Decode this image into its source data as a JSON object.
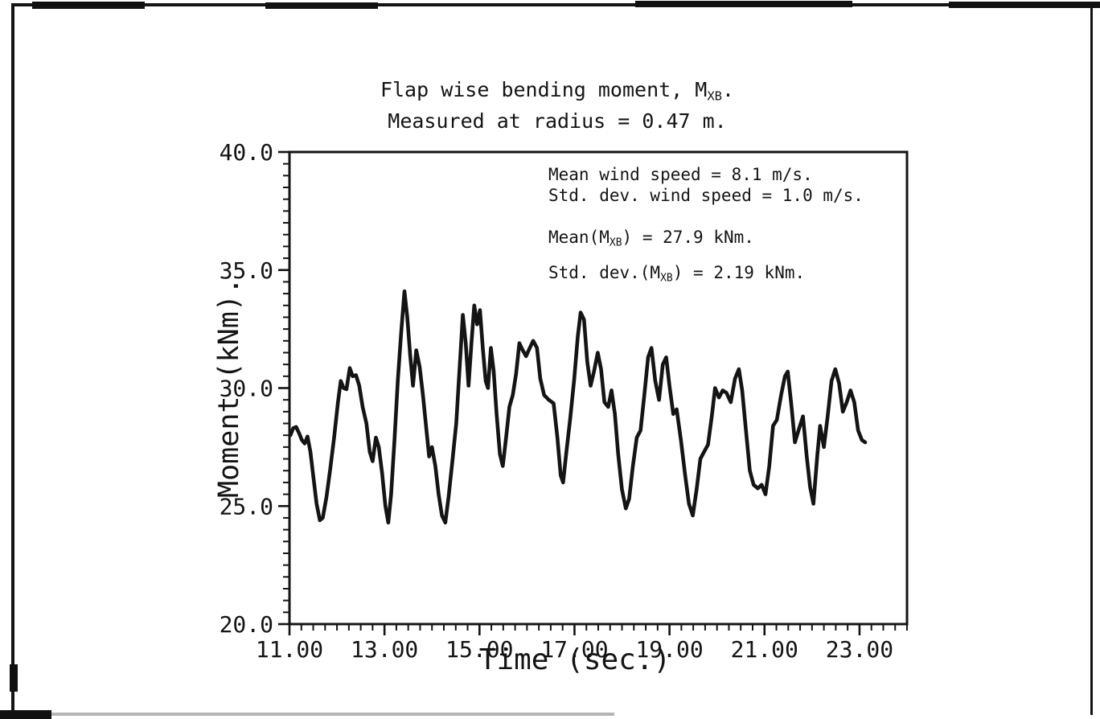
{
  "figure": {
    "title_line1": {
      "prefix": "Flap wise bending moment, M",
      "sub": "XB",
      "suffix": "."
    },
    "title_line2": "Measured at radius = 0.47 m.",
    "annotations": {
      "line1": "Mean wind speed = 8.1 m/s.",
      "line2": "Std. dev. wind speed = 1.0 m/s.",
      "line3": {
        "prefix": "Mean(M",
        "sub": "XB",
        "suffix": ") = 27.9 kNm."
      },
      "line4": {
        "prefix": "Std. dev.(M",
        "sub": "XB",
        "suffix": ") = 2.19 kNm."
      }
    },
    "xlabel": "Time (sec.)",
    "ylabel": "Moment (kNm)."
  },
  "chart_data": {
    "type": "line",
    "title": "Flap wise bending moment, M_XB. Measured at radius = 0.47 m.",
    "xlabel": "Time (sec.)",
    "ylabel": "Moment (kNm).",
    "xlim": [
      11.0,
      24.0
    ],
    "ylim": [
      20.0,
      40.0
    ],
    "grid": false,
    "legend": "none",
    "line_color": "#141414",
    "x_major_ticks": [
      11,
      13,
      15,
      17,
      19,
      21,
      23
    ],
    "x_tick_labels": [
      "11.00",
      "13.00",
      "15.00",
      "17.00",
      "19.00",
      "21.00",
      "23.00"
    ],
    "x_minor_step": 0.25,
    "y_major_ticks": [
      40,
      35,
      30,
      25,
      20
    ],
    "y_tick_labels": [
      "40.0",
      "35.0",
      "30.0",
      "25.0",
      "20.0"
    ],
    "y_minor_step": 0.5,
    "stats_shown": {
      "mean_wind_speed_m_per_s": 8.1,
      "std_dev_wind_speed_m_per_s": 1.0,
      "mean_MXB_kNm": 27.9,
      "std_dev_MXB_kNm": 2.19,
      "radius_m": 0.47
    },
    "series": [
      {
        "name": "Flap wise bending moment M_XB (kNm)",
        "points": [
          [
            11.02,
            28.0
          ],
          [
            11.08,
            28.3
          ],
          [
            11.14,
            28.35
          ],
          [
            11.2,
            28.1
          ],
          [
            11.26,
            27.8
          ],
          [
            11.32,
            27.65
          ],
          [
            11.38,
            27.95
          ],
          [
            11.44,
            27.3
          ],
          [
            11.5,
            26.3
          ],
          [
            11.57,
            25.1
          ],
          [
            11.64,
            24.4
          ],
          [
            11.7,
            24.5
          ],
          [
            11.78,
            25.4
          ],
          [
            11.86,
            26.6
          ],
          [
            11.94,
            27.9
          ],
          [
            12.02,
            29.4
          ],
          [
            12.08,
            30.3
          ],
          [
            12.14,
            30.0
          ],
          [
            12.2,
            29.95
          ],
          [
            12.27,
            30.85
          ],
          [
            12.33,
            30.5
          ],
          [
            12.4,
            30.55
          ],
          [
            12.47,
            30.1
          ],
          [
            12.54,
            29.2
          ],
          [
            12.62,
            28.5
          ],
          [
            12.69,
            27.3
          ],
          [
            12.75,
            26.9
          ],
          [
            12.82,
            27.9
          ],
          [
            12.88,
            27.5
          ],
          [
            12.95,
            26.4
          ],
          [
            13.02,
            25.0
          ],
          [
            13.08,
            24.3
          ],
          [
            13.14,
            25.5
          ],
          [
            13.21,
            27.8
          ],
          [
            13.28,
            30.3
          ],
          [
            13.35,
            32.3
          ],
          [
            13.42,
            34.1
          ],
          [
            13.48,
            33.0
          ],
          [
            13.54,
            31.4
          ],
          [
            13.6,
            30.1
          ],
          [
            13.67,
            31.6
          ],
          [
            13.74,
            30.9
          ],
          [
            13.81,
            29.7
          ],
          [
            13.88,
            28.3
          ],
          [
            13.94,
            27.1
          ],
          [
            14.0,
            27.5
          ],
          [
            14.07,
            26.7
          ],
          [
            14.14,
            25.5
          ],
          [
            14.21,
            24.6
          ],
          [
            14.28,
            24.3
          ],
          [
            14.35,
            25.4
          ],
          [
            14.43,
            26.9
          ],
          [
            14.51,
            28.5
          ],
          [
            14.58,
            30.8
          ],
          [
            14.65,
            33.1
          ],
          [
            14.71,
            31.9
          ],
          [
            14.77,
            30.1
          ],
          [
            14.83,
            31.9
          ],
          [
            14.89,
            33.5
          ],
          [
            14.95,
            32.7
          ],
          [
            15.01,
            33.3
          ],
          [
            15.07,
            31.7
          ],
          [
            15.13,
            30.3
          ],
          [
            15.18,
            30.0
          ],
          [
            15.24,
            31.7
          ],
          [
            15.3,
            30.7
          ],
          [
            15.36,
            28.9
          ],
          [
            15.43,
            27.2
          ],
          [
            15.49,
            26.7
          ],
          [
            15.56,
            27.9
          ],
          [
            15.63,
            29.2
          ],
          [
            15.7,
            29.7
          ],
          [
            15.77,
            30.6
          ],
          [
            15.84,
            31.9
          ],
          [
            15.91,
            31.6
          ],
          [
            15.98,
            31.35
          ],
          [
            16.06,
            31.7
          ],
          [
            16.13,
            32.0
          ],
          [
            16.21,
            31.7
          ],
          [
            16.28,
            30.4
          ],
          [
            16.36,
            29.7
          ],
          [
            16.46,
            29.5
          ],
          [
            16.56,
            29.35
          ],
          [
            16.64,
            27.9
          ],
          [
            16.71,
            26.3
          ],
          [
            16.76,
            26.0
          ],
          [
            16.83,
            27.3
          ],
          [
            16.91,
            28.7
          ],
          [
            16.99,
            30.3
          ],
          [
            17.07,
            32.2
          ],
          [
            17.13,
            33.2
          ],
          [
            17.2,
            32.9
          ],
          [
            17.27,
            31.1
          ],
          [
            17.34,
            30.1
          ],
          [
            17.41,
            30.7
          ],
          [
            17.49,
            31.5
          ],
          [
            17.56,
            30.8
          ],
          [
            17.63,
            29.4
          ],
          [
            17.71,
            29.2
          ],
          [
            17.78,
            29.9
          ],
          [
            17.85,
            28.9
          ],
          [
            17.92,
            27.2
          ],
          [
            18.0,
            25.7
          ],
          [
            18.08,
            24.9
          ],
          [
            18.15,
            25.3
          ],
          [
            18.23,
            26.7
          ],
          [
            18.31,
            27.9
          ],
          [
            18.39,
            28.2
          ],
          [
            18.47,
            29.7
          ],
          [
            18.55,
            31.3
          ],
          [
            18.62,
            31.7
          ],
          [
            18.7,
            30.3
          ],
          [
            18.78,
            29.5
          ],
          [
            18.86,
            31.0
          ],
          [
            18.93,
            31.3
          ],
          [
            19.0,
            30.1
          ],
          [
            19.08,
            28.9
          ],
          [
            19.15,
            29.1
          ],
          [
            19.24,
            27.8
          ],
          [
            19.33,
            26.3
          ],
          [
            19.41,
            25.1
          ],
          [
            19.49,
            24.6
          ],
          [
            19.57,
            25.7
          ],
          [
            19.65,
            27.0
          ],
          [
            19.73,
            27.3
          ],
          [
            19.81,
            27.6
          ],
          [
            19.89,
            28.8
          ],
          [
            19.96,
            30.0
          ],
          [
            20.04,
            29.6
          ],
          [
            20.12,
            29.9
          ],
          [
            20.2,
            29.8
          ],
          [
            20.29,
            29.4
          ],
          [
            20.38,
            30.4
          ],
          [
            20.46,
            30.8
          ],
          [
            20.53,
            29.9
          ],
          [
            20.61,
            28.2
          ],
          [
            20.69,
            26.5
          ],
          [
            20.77,
            25.9
          ],
          [
            20.86,
            25.75
          ],
          [
            20.94,
            25.9
          ],
          [
            21.02,
            25.5
          ],
          [
            21.1,
            26.7
          ],
          [
            21.18,
            28.4
          ],
          [
            21.26,
            28.65
          ],
          [
            21.35,
            29.7
          ],
          [
            21.43,
            30.5
          ],
          [
            21.49,
            30.7
          ],
          [
            21.57,
            29.2
          ],
          [
            21.64,
            27.7
          ],
          [
            21.73,
            28.3
          ],
          [
            21.81,
            28.8
          ],
          [
            21.89,
            27.1
          ],
          [
            21.96,
            25.8
          ],
          [
            22.03,
            25.1
          ],
          [
            22.11,
            27.1
          ],
          [
            22.17,
            28.4
          ],
          [
            22.25,
            27.5
          ],
          [
            22.33,
            28.8
          ],
          [
            22.41,
            30.3
          ],
          [
            22.49,
            30.8
          ],
          [
            22.57,
            30.2
          ],
          [
            22.65,
            29.0
          ],
          [
            22.73,
            29.4
          ],
          [
            22.81,
            29.9
          ],
          [
            22.89,
            29.4
          ],
          [
            22.97,
            28.2
          ],
          [
            23.05,
            27.8
          ],
          [
            23.12,
            27.7
          ]
        ]
      }
    ]
  }
}
